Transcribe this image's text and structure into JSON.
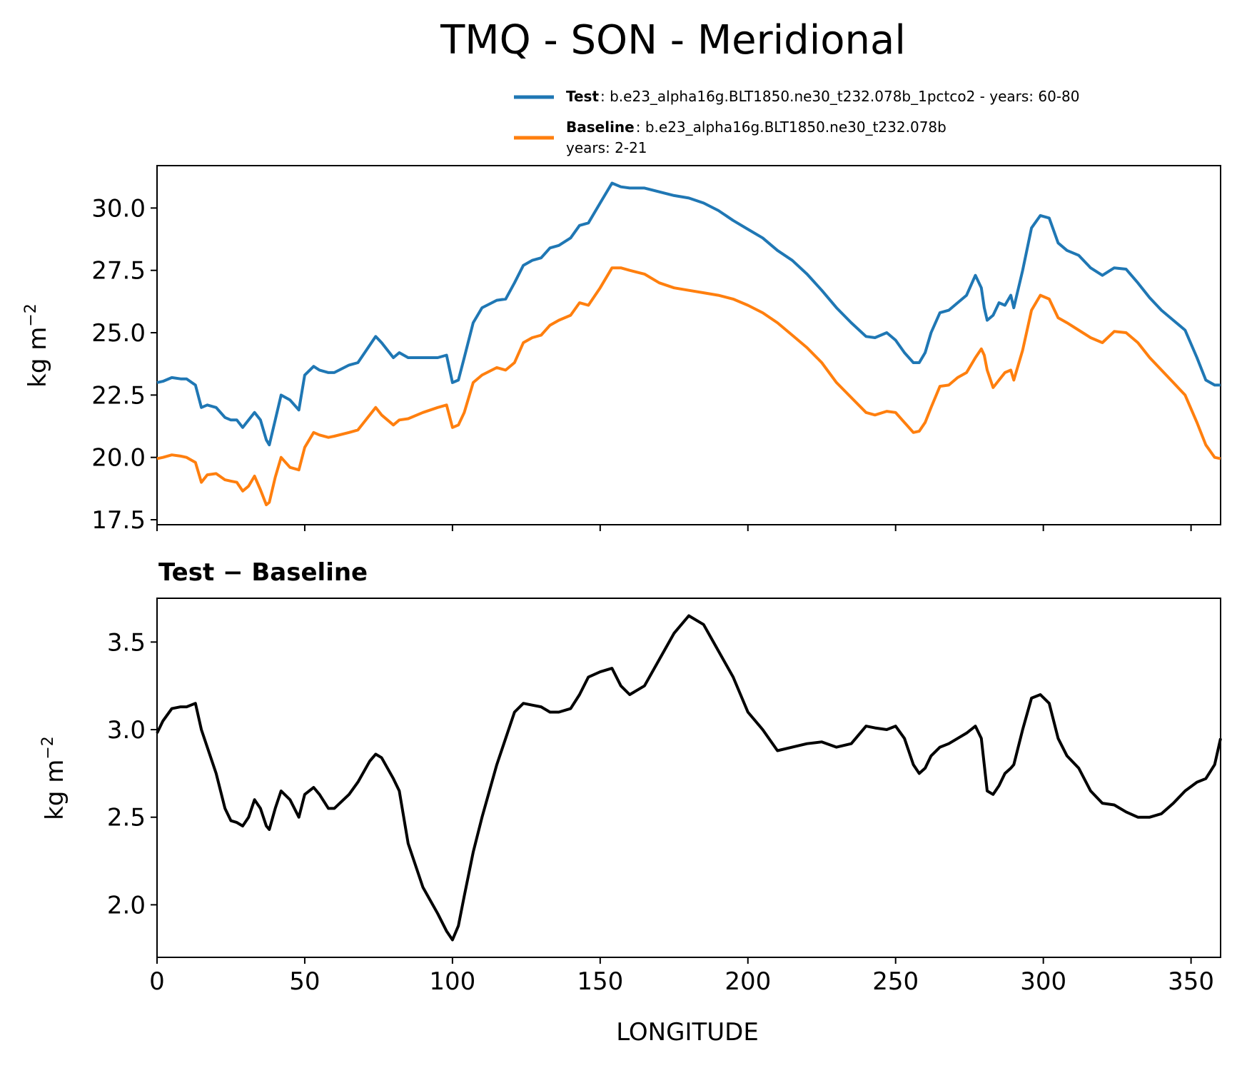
{
  "figure": {
    "title": "TMQ - SON - Meridional"
  },
  "legend": {
    "test_name": "Test",
    "test_text": ": b.e23_alpha16g.BLT1850.ne30_t232.078b_1pctco2 - years: 60-80",
    "baseline_name": "Baseline",
    "baseline_text": ": b.e23_alpha16g.BLT1850.ne30_t232.078b",
    "baseline_text2": "years: 2-21"
  },
  "colors": {
    "test": "#1f77b4",
    "baseline": "#ff7f0e",
    "difference": "#000000"
  },
  "chart_data": [
    {
      "type": "line",
      "title": "",
      "xlabel": "",
      "ylabel": "kg m",
      "ylabel_exponent": "−2",
      "xlim": [
        0,
        360
      ],
      "ylim": [
        17.3,
        31.7
      ],
      "yticks": [
        "17.5",
        "20.0",
        "22.5",
        "25.0",
        "27.5",
        "30.0"
      ],
      "xticks": [
        0,
        50,
        100,
        150,
        200,
        250,
        300,
        350
      ],
      "grid": false,
      "legend_position": "above plot, top-right",
      "x": [
        0,
        2,
        5,
        8,
        10,
        13,
        15,
        17,
        20,
        23,
        25,
        27,
        29,
        31,
        33,
        35,
        37,
        38,
        40,
        42,
        45,
        48,
        50,
        53,
        55,
        58,
        60,
        65,
        68,
        72,
        74,
        76,
        80,
        82,
        85,
        90,
        95,
        98,
        100,
        102,
        104,
        107,
        110,
        115,
        118,
        121,
        124,
        127,
        130,
        133,
        136,
        140,
        143,
        146,
        150,
        154,
        157,
        160,
        165,
        170,
        175,
        180,
        185,
        190,
        195,
        200,
        205,
        210,
        215,
        220,
        225,
        230,
        235,
        240,
        243,
        247,
        250,
        253,
        256,
        258,
        260,
        262,
        265,
        268,
        271,
        274,
        277,
        279,
        280,
        281,
        283,
        285,
        287,
        289,
        290,
        293,
        296,
        299,
        302,
        305,
        308,
        312,
        316,
        320,
        324,
        328,
        332,
        336,
        340,
        344,
        348,
        352,
        355,
        358,
        360
      ],
      "series": [
        {
          "name": "Test",
          "values": [
            23.0,
            23.05,
            23.2,
            23.15,
            23.15,
            22.9,
            22.0,
            22.1,
            22.0,
            21.6,
            21.5,
            21.5,
            21.2,
            21.5,
            21.8,
            21.5,
            20.7,
            20.5,
            21.5,
            22.5,
            22.3,
            21.9,
            23.3,
            23.65,
            23.5,
            23.4,
            23.4,
            23.7,
            23.8,
            24.5,
            24.85,
            24.6,
            24.0,
            24.2,
            24.0,
            24.0,
            24.0,
            24.1,
            23.0,
            23.1,
            24.0,
            25.4,
            26.0,
            26.3,
            26.35,
            27.0,
            27.7,
            27.9,
            28.0,
            28.4,
            28.5,
            28.8,
            29.3,
            29.4,
            30.2,
            31.0,
            30.85,
            30.8,
            30.8,
            30.65,
            30.5,
            30.4,
            30.2,
            29.9,
            29.5,
            29.15,
            28.8,
            28.3,
            27.9,
            27.35,
            26.7,
            26.0,
            25.4,
            24.85,
            24.8,
            25.0,
            24.7,
            24.2,
            23.8,
            23.8,
            24.2,
            25.0,
            25.8,
            25.9,
            26.2,
            26.5,
            27.3,
            26.8,
            26.0,
            25.5,
            25.7,
            26.2,
            26.1,
            26.5,
            26.0,
            27.5,
            29.2,
            29.7,
            29.6,
            28.6,
            28.3,
            28.1,
            27.6,
            27.3,
            27.6,
            27.55,
            27.0,
            26.4,
            25.9,
            25.5,
            25.1,
            24.0,
            23.1,
            22.9,
            22.9
          ]
        },
        {
          "name": "Baseline",
          "values": [
            19.95,
            20.0,
            20.1,
            20.05,
            20.0,
            19.8,
            19.0,
            19.3,
            19.35,
            19.1,
            19.05,
            19.0,
            18.65,
            18.85,
            19.25,
            18.7,
            18.1,
            18.2,
            19.2,
            20.0,
            19.6,
            19.5,
            20.4,
            21.0,
            20.9,
            20.8,
            20.85,
            21.0,
            21.1,
            21.7,
            22.0,
            21.7,
            21.3,
            21.5,
            21.55,
            21.8,
            22.0,
            22.1,
            21.2,
            21.3,
            21.8,
            23.0,
            23.3,
            23.6,
            23.5,
            23.8,
            24.6,
            24.8,
            24.9,
            25.3,
            25.5,
            25.7,
            26.2,
            26.1,
            26.8,
            27.6,
            27.6,
            27.5,
            27.35,
            27.0,
            26.8,
            26.7,
            26.6,
            26.5,
            26.35,
            26.1,
            25.8,
            25.4,
            24.9,
            24.4,
            23.8,
            23.0,
            22.4,
            21.8,
            21.7,
            21.85,
            21.8,
            21.4,
            21.0,
            21.05,
            21.4,
            22.0,
            22.85,
            22.9,
            23.2,
            23.4,
            24.0,
            24.35,
            24.1,
            23.5,
            22.8,
            23.1,
            23.4,
            23.5,
            23.1,
            24.3,
            25.9,
            26.5,
            26.35,
            25.6,
            25.4,
            25.1,
            24.8,
            24.6,
            25.05,
            25.0,
            24.6,
            24.0,
            23.5,
            23.0,
            22.5,
            21.4,
            20.5,
            20.0,
            19.95
          ]
        }
      ]
    },
    {
      "type": "line",
      "title": "Test − Baseline",
      "xlabel": "LONGITUDE",
      "ylabel": "kg m",
      "ylabel_exponent": "−2",
      "xlim": [
        0,
        360
      ],
      "ylim": [
        1.7,
        3.75
      ],
      "yticks": [
        "2.0",
        "2.5",
        "3.0",
        "3.5"
      ],
      "xticks": [
        "0",
        "50",
        "100",
        "150",
        "200",
        "250",
        "300",
        "350"
      ],
      "grid": false,
      "x": [
        0,
        2,
        5,
        8,
        10,
        13,
        15,
        17,
        20,
        23,
        25,
        27,
        29,
        31,
        33,
        35,
        37,
        38,
        40,
        42,
        45,
        48,
        50,
        53,
        55,
        58,
        60,
        65,
        68,
        72,
        74,
        76,
        80,
        82,
        85,
        90,
        95,
        98,
        100,
        102,
        104,
        107,
        110,
        115,
        118,
        121,
        124,
        127,
        130,
        133,
        136,
        140,
        143,
        146,
        150,
        154,
        157,
        160,
        165,
        170,
        175,
        180,
        185,
        190,
        195,
        200,
        205,
        210,
        215,
        220,
        225,
        230,
        235,
        240,
        243,
        247,
        250,
        253,
        256,
        258,
        260,
        262,
        265,
        268,
        271,
        274,
        277,
        279,
        280,
        281,
        283,
        285,
        287,
        289,
        290,
        293,
        296,
        299,
        302,
        305,
        308,
        312,
        316,
        320,
        324,
        328,
        332,
        336,
        340,
        344,
        348,
        352,
        355,
        358,
        360
      ],
      "series": [
        {
          "name": "",
          "values": [
            2.98,
            3.05,
            3.12,
            3.13,
            3.13,
            3.15,
            3.0,
            2.9,
            2.75,
            2.55,
            2.48,
            2.47,
            2.45,
            2.5,
            2.6,
            2.55,
            2.45,
            2.43,
            2.55,
            2.65,
            2.6,
            2.5,
            2.63,
            2.67,
            2.63,
            2.55,
            2.55,
            2.63,
            2.7,
            2.82,
            2.86,
            2.84,
            2.72,
            2.65,
            2.35,
            2.1,
            1.95,
            1.85,
            1.8,
            1.88,
            2.05,
            2.3,
            2.5,
            2.8,
            2.95,
            3.1,
            3.15,
            3.14,
            3.13,
            3.1,
            3.1,
            3.12,
            3.2,
            3.3,
            3.33,
            3.35,
            3.25,
            3.2,
            3.25,
            3.4,
            3.55,
            3.65,
            3.6,
            3.45,
            3.3,
            3.1,
            3.0,
            2.88,
            2.9,
            2.92,
            2.93,
            2.9,
            2.92,
            3.02,
            3.01,
            3.0,
            3.02,
            2.95,
            2.8,
            2.75,
            2.78,
            2.85,
            2.9,
            2.92,
            2.95,
            2.98,
            3.02,
            2.95,
            2.8,
            2.65,
            2.63,
            2.68,
            2.75,
            2.78,
            2.8,
            3.0,
            3.18,
            3.2,
            3.15,
            2.95,
            2.85,
            2.78,
            2.65,
            2.58,
            2.57,
            2.53,
            2.5,
            2.5,
            2.52,
            2.58,
            2.65,
            2.7,
            2.72,
            2.8,
            2.95
          ]
        }
      ]
    }
  ]
}
